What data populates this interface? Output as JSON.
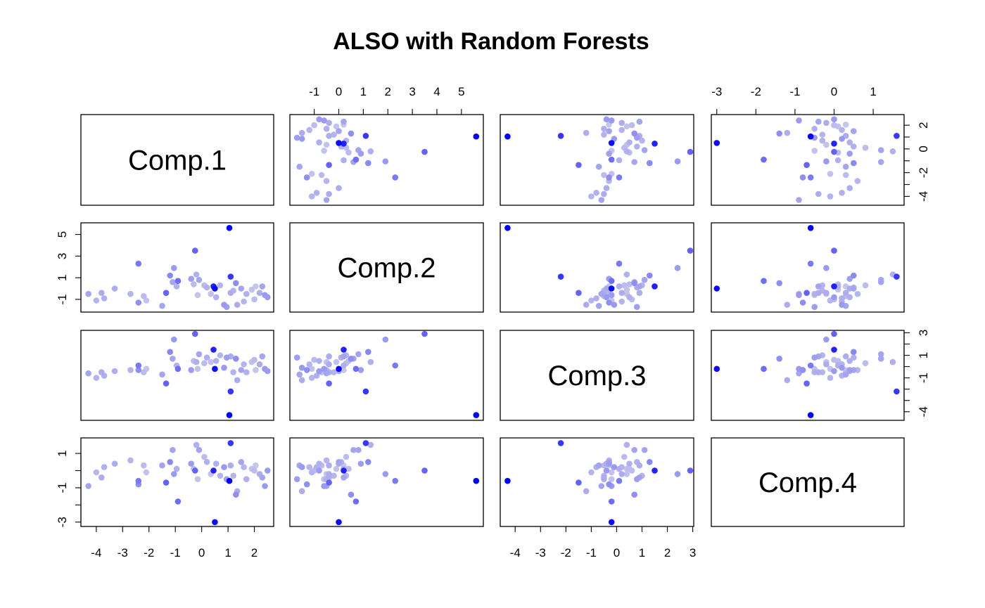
{
  "chart_data": {
    "type": "scatter",
    "title": "ALSO with Random Forests",
    "variables": [
      "Comp.1",
      "Comp.2",
      "Comp.3",
      "Comp.4"
    ],
    "axes": {
      "Comp.1": {
        "lim": [
          -4.45,
          2.6
        ],
        "ticks": [
          -4,
          -3,
          -2,
          -1,
          0,
          1,
          2
        ]
      },
      "Comp.2": {
        "lim": [
          -1.85,
          5.75
        ],
        "ticks": [
          -1,
          0,
          1,
          2,
          3,
          4,
          5
        ],
        "row_ticks": [
          -1,
          1,
          3,
          5
        ]
      },
      "Comp.3": {
        "lim": [
          -4.45,
          2.9
        ],
        "ticks": [
          -4,
          -3,
          -2,
          -1,
          0,
          1,
          2,
          3
        ],
        "row_ticks": [
          -4,
          -1,
          1,
          3
        ],
        "row_minor_ticks": [
          -3,
          -2,
          0,
          2
        ]
      },
      "Comp.4": {
        "lim": [
          -3.05,
          1.7
        ],
        "ticks": [
          -3,
          -2,
          -1,
          0,
          1
        ],
        "row_ticks": [
          -3,
          -1,
          1
        ],
        "row_minor_ticks": [
          -2,
          0
        ]
      }
    },
    "color_scale": {
      "low": "#dcdcea",
      "high": "#0000ff",
      "description": "point color encodes outlier score"
    },
    "points": [
      {
        "c1": -4.3,
        "c2": -0.5,
        "c3": -0.6,
        "c4": -0.9,
        "s": 0.25
      },
      {
        "c1": -4.0,
        "c2": -1.1,
        "c3": -1.0,
        "c4": -0.1,
        "s": 0.18
      },
      {
        "c1": -3.8,
        "c2": -0.4,
        "c3": -0.5,
        "c4": -0.4,
        "s": 0.22
      },
      {
        "c1": -3.7,
        "c2": -0.9,
        "c3": -0.8,
        "c4": 0.2,
        "s": 0.2
      },
      {
        "c1": -3.3,
        "c2": 0.0,
        "c3": -0.4,
        "c4": 0.4,
        "s": 0.22
      },
      {
        "c1": -2.7,
        "c2": -0.5,
        "c3": -0.3,
        "c4": 0.6,
        "s": 0.18
      },
      {
        "c1": -2.4,
        "c2": 2.3,
        "c3": 0.1,
        "c4": -0.6,
        "s": 0.45
      },
      {
        "c1": -2.4,
        "c2": -1.3,
        "c3": -0.3,
        "c4": -0.8,
        "s": 0.35
      },
      {
        "c1": -2.2,
        "c2": -0.7,
        "c3": -0.5,
        "c4": 0.3,
        "s": 0.15
      },
      {
        "c1": -2.1,
        "c2": -1.1,
        "c3": -0.2,
        "c4": -0.1,
        "s": 0.12
      },
      {
        "c1": -1.5,
        "c2": -1.6,
        "c3": -0.7,
        "c4": 0.3,
        "s": 0.25
      },
      {
        "c1": -1.35,
        "c2": -0.4,
        "c3": -1.5,
        "c4": -0.7,
        "s": 0.55
      },
      {
        "c1": -1.2,
        "c2": 1.2,
        "c3": 1.3,
        "c4": 0.5,
        "s": 0.38
      },
      {
        "c1": -1.1,
        "c2": 0.6,
        "c3": 0.7,
        "c4": 1.2,
        "s": 0.25
      },
      {
        "c1": -1.05,
        "c2": 1.9,
        "c3": 2.4,
        "c4": -0.2,
        "s": 0.3
      },
      {
        "c1": -0.95,
        "c2": 0.2,
        "c3": 0.1,
        "c4": 0.1,
        "s": 0.2
      },
      {
        "c1": -0.9,
        "c2": 0.7,
        "c3": -0.2,
        "c4": -1.8,
        "s": 0.5
      },
      {
        "c1": -0.4,
        "c2": 0.9,
        "c3": -0.3,
        "c4": 0.4,
        "s": 0.28
      },
      {
        "c1": -0.3,
        "c2": 0.4,
        "c3": 0.5,
        "c4": 0.1,
        "s": 0.15
      },
      {
        "c1": -0.25,
        "c2": 3.5,
        "c3": 2.9,
        "c4": 0.0,
        "s": 0.55
      },
      {
        "c1": -0.2,
        "c2": 1.3,
        "c3": 0.4,
        "c4": 1.5,
        "s": 0.2
      },
      {
        "c1": -0.15,
        "c2": -0.6,
        "c3": -0.2,
        "c4": -0.5,
        "s": 0.12
      },
      {
        "c1": -0.1,
        "c2": 0.8,
        "c3": 1.1,
        "c4": 1.2,
        "s": 0.25
      },
      {
        "c1": 0.1,
        "c2": 0.3,
        "c3": 0.3,
        "c4": 0.8,
        "s": 0.15
      },
      {
        "c1": 0.2,
        "c2": 0.1,
        "c3": 0.8,
        "c4": 0.5,
        "s": 0.2
      },
      {
        "c1": 0.35,
        "c2": -0.5,
        "c3": 0.4,
        "c4": -0.2,
        "s": 0.12
      },
      {
        "c1": 0.45,
        "c2": 0.2,
        "c3": 1.5,
        "c4": 0.0,
        "s": 0.85
      },
      {
        "c1": 0.5,
        "c2": 0.0,
        "c3": -0.2,
        "c4": -3.0,
        "s": 0.95
      },
      {
        "c1": 0.55,
        "c2": -0.8,
        "c3": 0.5,
        "c4": 0.4,
        "s": 0.2
      },
      {
        "c1": 0.7,
        "c2": 0.3,
        "c3": 1.0,
        "c4": -0.3,
        "s": 0.18
      },
      {
        "c1": 0.85,
        "c2": -1.5,
        "c3": -0.1,
        "c4": 0.2,
        "s": 0.3
      },
      {
        "c1": 0.95,
        "c2": -1.7,
        "c3": 0.8,
        "c4": -0.5,
        "s": 0.28
      },
      {
        "c1": 1.05,
        "c2": 5.6,
        "c3": -4.3,
        "c4": -0.6,
        "s": 1.0
      },
      {
        "c1": 1.1,
        "c2": 1.1,
        "c3": -2.2,
        "c4": 1.6,
        "s": 0.75
      },
      {
        "c1": 1.1,
        "c2": -0.4,
        "c3": 0.9,
        "c4": 0.3,
        "s": 0.22
      },
      {
        "c1": 1.2,
        "c2": -0.2,
        "c3": -0.5,
        "c4": -0.3,
        "s": 0.18
      },
      {
        "c1": 1.3,
        "c2": 0.5,
        "c3": 0.7,
        "c4": -1.4,
        "s": 0.35
      },
      {
        "c1": 1.35,
        "c2": -1.5,
        "c3": -1.2,
        "c4": -1.2,
        "s": 0.22
      },
      {
        "c1": 1.5,
        "c2": 0.0,
        "c3": -0.3,
        "c4": 0.5,
        "s": 0.25
      },
      {
        "c1": 1.6,
        "c2": -1.2,
        "c3": 0.2,
        "c4": 0.2,
        "s": 0.18
      },
      {
        "c1": 1.7,
        "c2": -0.5,
        "c3": -0.5,
        "c4": -0.5,
        "s": 0.2
      },
      {
        "c1": 1.9,
        "c2": -0.1,
        "c3": 0.4,
        "c4": 0.1,
        "s": 0.12
      },
      {
        "c1": 2.0,
        "c2": -1.0,
        "c3": 0.6,
        "c4": 0.0,
        "s": 0.15
      },
      {
        "c1": 2.05,
        "c2": 0.2,
        "c3": -0.3,
        "c4": 0.3,
        "s": 0.1
      },
      {
        "c1": 2.2,
        "c2": -0.4,
        "c3": 0.2,
        "c4": -0.2,
        "s": 0.22
      },
      {
        "c1": 2.3,
        "c2": 0.2,
        "c3": 0.9,
        "c4": -0.4,
        "s": 0.25
      },
      {
        "c1": 2.4,
        "c2": -0.6,
        "c3": -0.2,
        "c4": -0.9,
        "s": 0.3
      },
      {
        "c1": 2.5,
        "c2": -0.8,
        "c3": -0.4,
        "c4": 0.0,
        "s": 0.3
      }
    ]
  }
}
